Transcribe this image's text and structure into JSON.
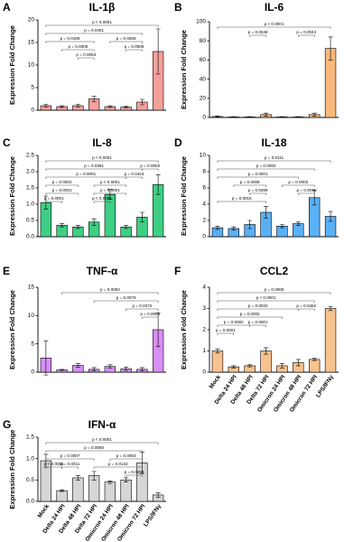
{
  "chart_data": [
    {
      "type": "bar",
      "label": "A",
      "title": "IL-1β",
      "ylabel": "Expression Fold Change",
      "color": "#f4a09a",
      "values": [
        1,
        0.8,
        1,
        2.5,
        0.8,
        0.7,
        1.8,
        13
      ],
      "errors": [
        0.3,
        0.2,
        0.3,
        0.6,
        0.2,
        0.2,
        0.6,
        5
      ],
      "ylim": [
        0,
        20
      ],
      "yticks": [
        0,
        5,
        10,
        15,
        20
      ],
      "annotations": [
        {
          "from": 0,
          "to": 7,
          "label": "p < 0.0001"
        },
        {
          "from": 0,
          "to": 6,
          "label": "p = 0.0401"
        },
        {
          "from": 0,
          "to": 3,
          "label": "p = 0.0186"
        },
        {
          "from": 1,
          "to": 3,
          "label": "p = 0.0005"
        },
        {
          "from": 4,
          "to": 6,
          "label": "p = 0.0259"
        },
        {
          "from": 2,
          "to": 3,
          "label": "p = 0.0063"
        },
        {
          "from": 5,
          "to": 6,
          "label": "p = 0.0006"
        }
      ]
    },
    {
      "type": "bar",
      "label": "B",
      "title": "IL-6",
      "ylabel": "Expression Fold Change",
      "color": "#f9b97c",
      "values": [
        1,
        0.5,
        0.5,
        3,
        0.5,
        0.5,
        3,
        72
      ],
      "errors": [
        0.5,
        0.3,
        0.3,
        1.5,
        0.3,
        0.3,
        1.5,
        12
      ],
      "ylim": [
        0,
        100
      ],
      "yticks": [
        0,
        20,
        40,
        60,
        80,
        100
      ],
      "annotations": [
        {
          "from": 0,
          "to": 7,
          "label": "p < 0.0001"
        },
        {
          "from": 2,
          "to": 3,
          "label": "p = 0.0048"
        },
        {
          "from": 5,
          "to": 6,
          "label": "p = 0.0043"
        }
      ]
    },
    {
      "type": "bar",
      "label": "C",
      "title": "IL-8",
      "ylabel": "Expression Fold Change",
      "color": "#3ecf84",
      "values": [
        1.05,
        0.35,
        0.3,
        0.45,
        1.3,
        0.3,
        0.6,
        1.6
      ],
      "errors": [
        0.2,
        0.05,
        0.05,
        0.1,
        0.15,
        0.05,
        0.15,
        0.3
      ],
      "ylim": [
        0,
        2.5
      ],
      "yticks": [
        {
          "value": 0,
          "label": "0.0"
        },
        {
          "value": 0.5,
          "label": "0.5"
        },
        {
          "value": 1,
          "label": "1.0"
        },
        {
          "value": 1.5,
          "label": "1.5"
        },
        {
          "value": 2,
          "label": "2.0"
        },
        {
          "value": 2.5,
          "label": "2.5"
        }
      ],
      "annotations": [
        {
          "from": 0,
          "to": 7,
          "label": "p < 0.0001"
        },
        {
          "from": 0,
          "to": 6,
          "label": "p = 0.0391"
        },
        {
          "from": 0,
          "to": 5,
          "label": "p = 0.0001"
        },
        {
          "from": 0,
          "to": 2,
          "label": "p = 0.0002"
        },
        {
          "from": 3,
          "to": 5,
          "label": "p < 0.0001"
        },
        {
          "from": 6,
          "to": 7,
          "label": "p = 0.0002"
        },
        {
          "from": 0,
          "to": 2,
          "label": "p = 0.0031"
        },
        {
          "from": 3,
          "to": 5,
          "label": "p = 0.0001"
        },
        {
          "from": 0,
          "to": 1,
          "label": "p = 0.0001"
        },
        {
          "from": 3,
          "to": 4,
          "label": "p < 0.0001"
        },
        {
          "from": 5,
          "to": 6,
          "label": "p = 0.0424"
        }
      ]
    },
    {
      "type": "bar",
      "label": "D",
      "title": "IL-18",
      "ylabel": "Expression Fold Change",
      "color": "#5ab0f5",
      "values": [
        1.1,
        1.0,
        1.5,
        3.0,
        1.3,
        1.6,
        4.8,
        2.5
      ],
      "errors": [
        0.2,
        0.2,
        0.5,
        0.7,
        0.2,
        0.2,
        0.9,
        0.6
      ],
      "ylim": [
        0,
        10
      ],
      "yticks": [
        0,
        2,
        4,
        6,
        8,
        10
      ],
      "annotations": [
        {
          "from": 0,
          "to": 7,
          "label": "p = 0.0111"
        },
        {
          "from": 0,
          "to": 6,
          "label": "p = 0.0062"
        },
        {
          "from": 0,
          "to": 5,
          "label": "p = 0.0001"
        },
        {
          "from": 1,
          "to": 3,
          "label": "p = 0.0008"
        },
        {
          "from": 4,
          "to": 6,
          "label": "p = 0.0002"
        },
        {
          "from": 2,
          "to": 3,
          "label": "p = 0.0289"
        },
        {
          "from": 5,
          "to": 6,
          "label": "p = 0.0011"
        },
        {
          "from": 0,
          "to": 3,
          "label": "p = 0.0015"
        }
      ]
    },
    {
      "type": "bar",
      "label": "E",
      "title": "TNF-α",
      "ylabel": "Expression Fold Change",
      "color": "#d98ef5",
      "values": [
        2.5,
        0.4,
        1.2,
        0.5,
        1,
        0.6,
        0.5,
        7.5
      ],
      "errors": [
        3,
        0.1,
        0.3,
        0.3,
        0.3,
        0.3,
        0.3,
        3
      ],
      "ylim": [
        0,
        15
      ],
      "yticks": [
        0,
        5,
        10,
        15
      ],
      "annotations": [
        {
          "from": 1,
          "to": 7,
          "label": "p = 0.0062"
        },
        {
          "from": 3,
          "to": 7,
          "label": "p = 0.0079"
        },
        {
          "from": 5,
          "to": 7,
          "label": "p = 0.0272"
        },
        {
          "from": 6,
          "to": 7,
          "label": "p = 0.0065"
        }
      ]
    },
    {
      "type": "bar",
      "label": "F",
      "title": "CCL2",
      "ylabel": "Expression Fold Change",
      "color": "#f8c38e",
      "categories": [
        "Mock",
        "Delta 24 HPI",
        "Delta 48 HPI",
        "Delta 72 HPI",
        "Omicron 24 HPI",
        "Omicron 48 HPI",
        "Omicron 72 HPI",
        "LPS/IFNγ"
      ],
      "values": [
        1,
        0.25,
        0.3,
        1,
        0.3,
        0.45,
        0.6,
        3.0
      ],
      "errors": [
        0.1,
        0.05,
        0.05,
        0.15,
        0.1,
        0.15,
        0.05,
        0.1
      ],
      "ylim": [
        0,
        4
      ],
      "yticks": [
        0,
        1,
        2,
        3,
        4
      ],
      "annotations": [
        {
          "from": 0,
          "to": 7,
          "label": "p = 0.0006"
        },
        {
          "from": 0,
          "to": 6,
          "label": "p < 0.0001"
        },
        {
          "from": 0,
          "to": 5,
          "label": "p = 0.0032"
        },
        {
          "from": 0,
          "to": 4,
          "label": "p = 0.0002"
        },
        {
          "from": 0,
          "to": 2,
          "label": "p = 0.0002"
        },
        {
          "from": 2,
          "to": 3,
          "label": "p = 0.0001"
        },
        {
          "from": 0,
          "to": 1,
          "label": "p = 0.0001"
        },
        {
          "from": 5,
          "to": 6,
          "label": "p = 0.0452"
        }
      ]
    },
    {
      "type": "bar",
      "label": "G",
      "title": "IFN-α",
      "ylabel": "Expression Fold Change",
      "color": "#d6d6d6",
      "categories": [
        "Mock",
        "Delta 24 HPI",
        "Delta 48 HPI",
        "Delta 72 HPI",
        "Omicron 24 HPI",
        "Omicron 48 HPI",
        "Omicron 72 HPI",
        "LPS/IFNγ"
      ],
      "values": [
        0.95,
        0.25,
        0.55,
        0.6,
        0.45,
        0.5,
        0.9,
        0.15
      ],
      "errors": [
        0.15,
        0.02,
        0.05,
        0.1,
        0.03,
        0.05,
        0.25,
        0.05
      ],
      "ylim": [
        0,
        1.5
      ],
      "yticks": [
        {
          "value": 0,
          "label": "0.0"
        },
        {
          "value": 0.5,
          "label": "0.5"
        },
        {
          "value": 1,
          "label": "1.0"
        },
        {
          "value": 1.5,
          "label": "1.5"
        }
      ],
      "annotations": [
        {
          "from": 0,
          "to": 7,
          "label": "p < 0.0001"
        },
        {
          "from": 0,
          "to": 6,
          "label": "p = 0.0050"
        },
        {
          "from": 4,
          "to": 6,
          "label": "p = 0.0003"
        },
        {
          "from": 0,
          "to": 3,
          "label": "p = 0.0007"
        },
        {
          "from": 3,
          "to": 6,
          "label": "p = 0.0132"
        },
        {
          "from": 5,
          "to": 6,
          "label": "p = 0.0293"
        },
        {
          "from": 1,
          "to": 2,
          "label": "p = 0.0011"
        },
        {
          "from": 0,
          "to": 1,
          "label": "p < 0.0001"
        }
      ]
    }
  ]
}
